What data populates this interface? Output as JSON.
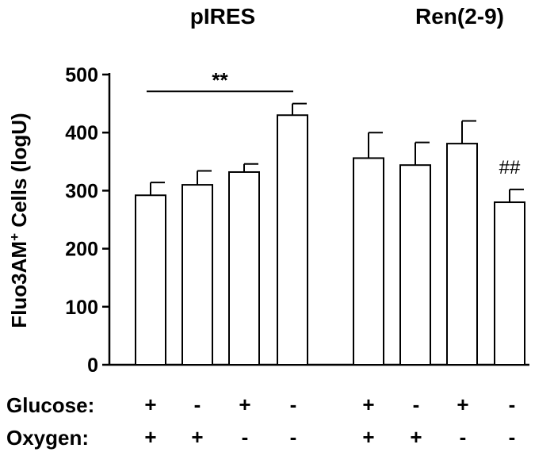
{
  "chart_data": {
    "type": "bar",
    "groups": [
      "pIRES",
      "Ren(2-9)"
    ],
    "ylabel_main": "Fluo3AM",
    "ylabel_sup": "+",
    "ylabel_rest": " Cells (logU)",
    "ylim": [
      0,
      500
    ],
    "yticks": [
      "0",
      "100",
      "200",
      "300",
      "400",
      "500"
    ],
    "bars": [
      {
        "group": "pIRES",
        "glucose": "+",
        "oxygen": "+",
        "value": 292,
        "error": 22
      },
      {
        "group": "pIRES",
        "glucose": "-",
        "oxygen": "+",
        "value": 310,
        "error": 24
      },
      {
        "group": "pIRES",
        "glucose": "+",
        "oxygen": "-",
        "value": 332,
        "error": 14
      },
      {
        "group": "pIRES",
        "glucose": "-",
        "oxygen": "-",
        "value": 430,
        "error": 20
      },
      {
        "group": "Ren(2-9)",
        "glucose": "+",
        "oxygen": "+",
        "value": 356,
        "error": 44
      },
      {
        "group": "Ren(2-9)",
        "glucose": "-",
        "oxygen": "+",
        "value": 344,
        "error": 39
      },
      {
        "group": "Ren(2-9)",
        "glucose": "+",
        "oxygen": "-",
        "value": 381,
        "error": 39
      },
      {
        "group": "Ren(2-9)",
        "glucose": "-",
        "oxygen": "-",
        "value": 280,
        "error": 22
      }
    ],
    "conditions": {
      "glucose_label": "Glucose:",
      "oxygen_label": "Oxygen:"
    },
    "annotations": {
      "significance": "**",
      "significance_bars": [
        0,
        3
      ],
      "hash": "##",
      "hash_bar": 7
    },
    "bar_fill": "#ffffff",
    "stroke": "#000000",
    "grid": false
  }
}
